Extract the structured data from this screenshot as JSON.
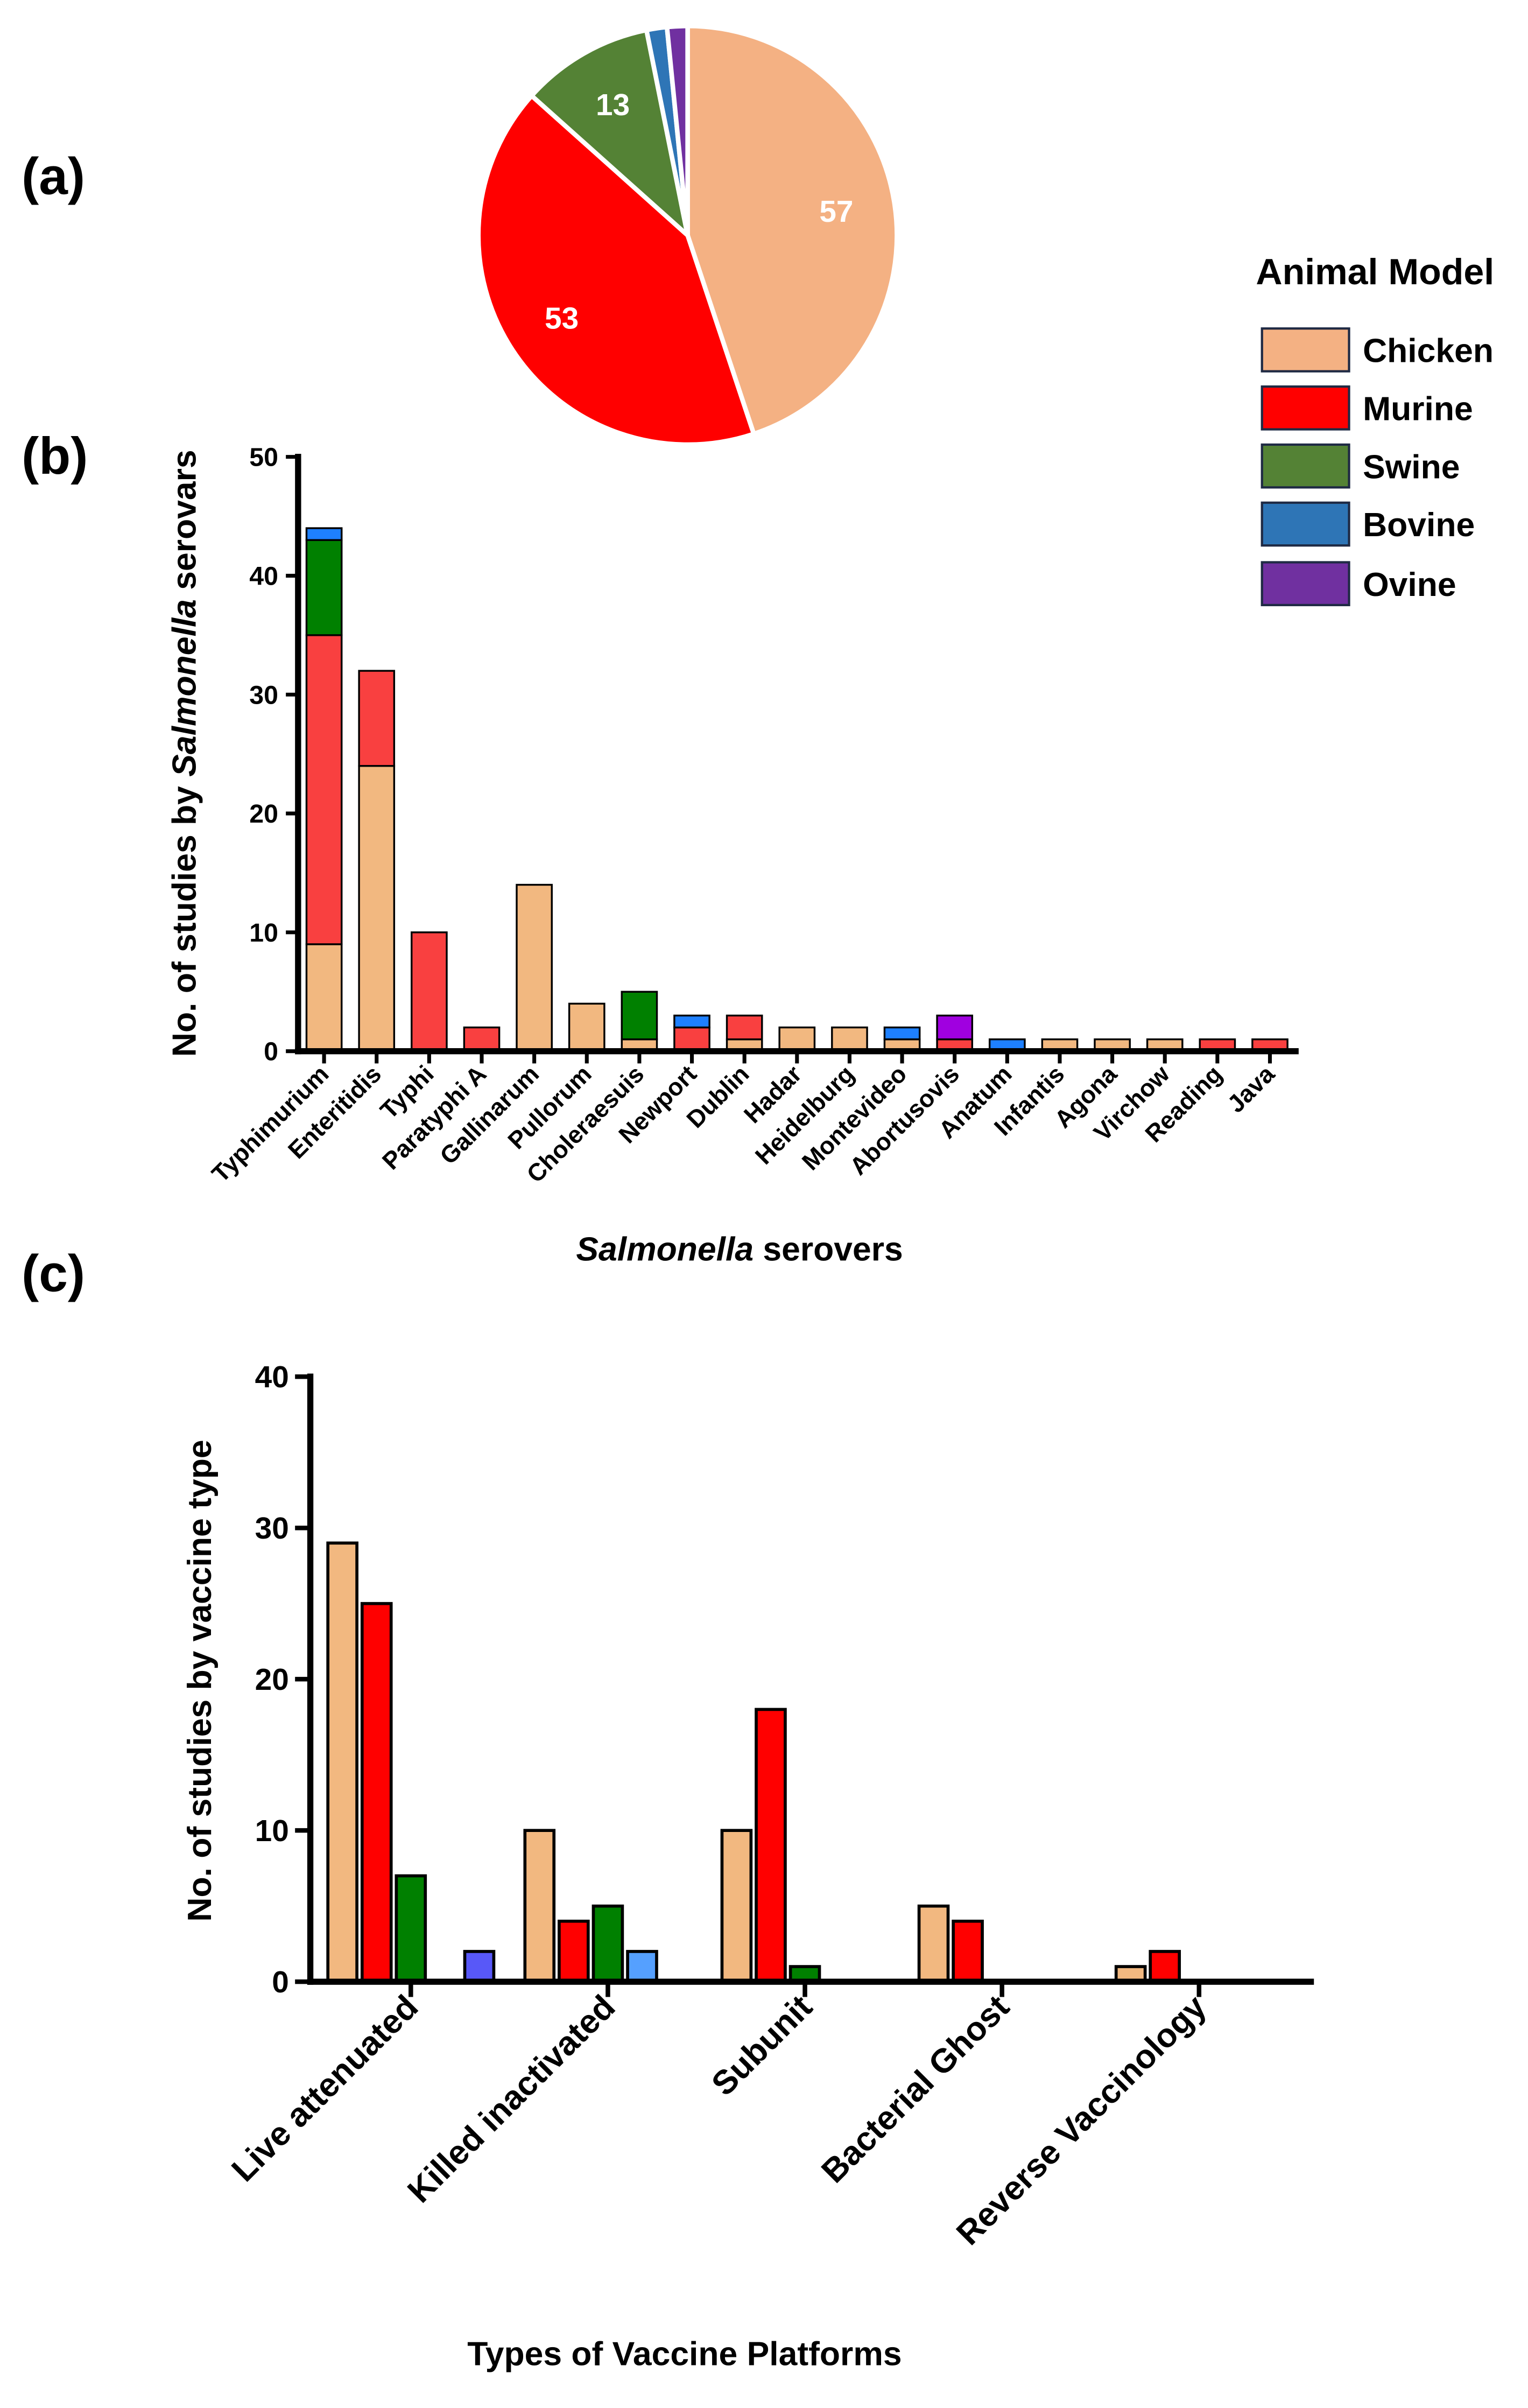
{
  "panel_labels": [
    "(a)",
    "(b)",
    "(c)"
  ],
  "legend": {
    "title": "Animal Model",
    "items": [
      {
        "label": "Chicken",
        "color": "#F4B183"
      },
      {
        "label": "Murine",
        "color": "#FF0000"
      },
      {
        "label": "Swine",
        "color": "#548235"
      },
      {
        "label": "Bovine",
        "color": "#2E75B6"
      },
      {
        "label": "Ovine",
        "color": "#7030A0"
      }
    ]
  },
  "chart_data": [
    {
      "type": "pie",
      "title": "",
      "slices": [
        {
          "label": "Chicken",
          "value": 57,
          "color": "#F4B183",
          "show_label": "57"
        },
        {
          "label": "Murine",
          "value": 53,
          "color": "#FF0000",
          "show_label": "53"
        },
        {
          "label": "Swine",
          "value": 13,
          "color": "#548235",
          "show_label": "13"
        },
        {
          "label": "Bovine",
          "value": 2,
          "color": "#2E75B6",
          "show_label": ""
        },
        {
          "label": "Ovine",
          "value": 2,
          "color": "#7030A0",
          "show_label": ""
        }
      ]
    },
    {
      "type": "bar",
      "stacked": true,
      "xlabel_italic": "Salmonella",
      "xlabel_rest": " serovers",
      "ylabel_pre": "No. of studies by ",
      "ylabel_italic": "Salmonella",
      "ylabel_post": "  serovars",
      "ylim": [
        0,
        50
      ],
      "yticks": [
        0,
        10,
        20,
        30,
        40,
        50
      ],
      "categories": [
        "Typhimurium",
        "Enteritidis",
        "Typhi",
        "Paratyphi A",
        "Gallinarum",
        "Pullorum",
        "Choleraesuis",
        "Newport",
        "Dublin",
        "Hadar",
        "Heidelburg",
        "Montevideo",
        "Abortusovis",
        "Anatum",
        "Infantis",
        "Agona",
        "Virchow",
        "Reading",
        "Java"
      ],
      "series": [
        {
          "name": "Chicken",
          "color": "#F2B880",
          "values": [
            9,
            24,
            0,
            0,
            14,
            4,
            1,
            0,
            1,
            2,
            2,
            1,
            0,
            0,
            1,
            1,
            1,
            0,
            0
          ]
        },
        {
          "name": "Murine",
          "color": "#F94040",
          "values": [
            26,
            8,
            10,
            2,
            0,
            0,
            0,
            2,
            2,
            0,
            0,
            0,
            1,
            0,
            0,
            0,
            0,
            1,
            1
          ]
        },
        {
          "name": "Swine",
          "color": "#008000",
          "values": [
            8,
            0,
            0,
            0,
            0,
            0,
            4,
            0,
            0,
            0,
            0,
            0,
            0,
            0,
            0,
            0,
            0,
            0,
            0
          ]
        },
        {
          "name": "Bovine",
          "color": "#1E80FF",
          "values": [
            1,
            0,
            0,
            0,
            0,
            0,
            0,
            1,
            0,
            0,
            0,
            1,
            0,
            1,
            0,
            0,
            0,
            0,
            0
          ]
        },
        {
          "name": "Ovine",
          "color": "#A000E0",
          "values": [
            0,
            0,
            0,
            0,
            0,
            0,
            0,
            0,
            0,
            0,
            0,
            0,
            2,
            0,
            0,
            0,
            0,
            0,
            0
          ]
        }
      ]
    },
    {
      "type": "bar",
      "stacked": false,
      "xlabel": "Types of Vaccine Platforms",
      "ylabel": "No. of studies by vaccine type",
      "ylim": [
        0,
        40
      ],
      "yticks": [
        0,
        10,
        20,
        30,
        40
      ],
      "categories": [
        "Live attenuated",
        "Killed inactivated",
        "Subunit",
        "Bacterial Ghost",
        "Reverse Vaccinology"
      ],
      "series": [
        {
          "name": "Chicken",
          "color": "#F2B880",
          "values": [
            29,
            10,
            10,
            5,
            1
          ]
        },
        {
          "name": "Murine",
          "color": "#FF0000",
          "values": [
            25,
            4,
            18,
            4,
            2
          ]
        },
        {
          "name": "Swine",
          "color": "#008000",
          "values": [
            7,
            5,
            1,
            0,
            0
          ]
        },
        {
          "name": "Bovine",
          "color": "#55A0FF",
          "values": [
            0,
            2,
            0,
            0,
            0
          ]
        },
        {
          "name": "Ovine",
          "color": "#5858F8",
          "values": [
            2,
            0,
            0,
            0,
            0
          ]
        }
      ]
    }
  ]
}
